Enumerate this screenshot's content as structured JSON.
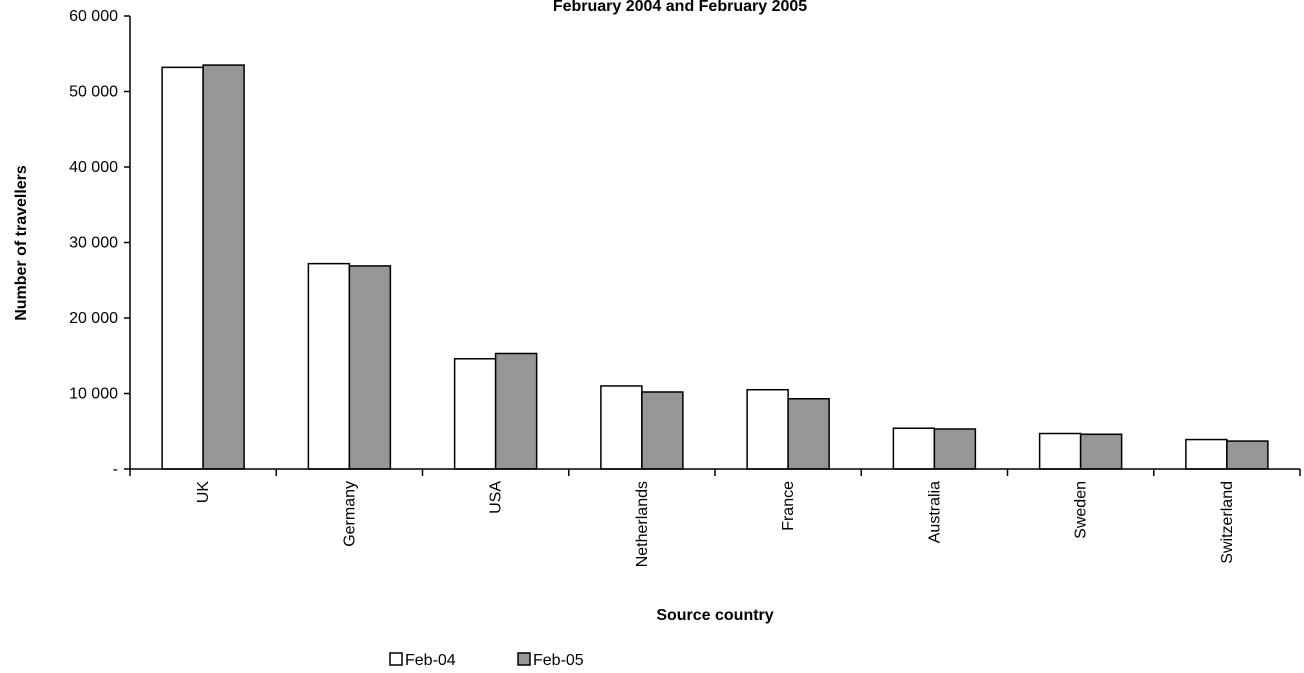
{
  "chart_data": {
    "type": "bar",
    "title": "February 2004 and February 2005",
    "xlabel": "Source country",
    "ylabel": "Number of travellers",
    "categories": [
      "UK",
      "Germany",
      "USA",
      "Netherlands",
      "France",
      "Australia",
      "Sweden",
      "Switzerland"
    ],
    "series": [
      {
        "name": "Feb-04",
        "color": "#ffffff",
        "values": [
          53200,
          27200,
          14600,
          11000,
          10500,
          5400,
          4700,
          3900
        ]
      },
      {
        "name": "Feb-05",
        "color": "#969696",
        "values": [
          53500,
          26900,
          15300,
          10200,
          9300,
          5300,
          4600,
          3700
        ]
      }
    ],
    "ylim": [
      0,
      60000
    ],
    "yticks": [
      0,
      10000,
      20000,
      30000,
      40000,
      50000,
      60000
    ],
    "ytick_labels": [
      "-",
      "10 000",
      "20 000",
      "30 000",
      "40 000",
      "50 000",
      "60 000"
    ],
    "grid": false,
    "legend_position": "bottom"
  }
}
